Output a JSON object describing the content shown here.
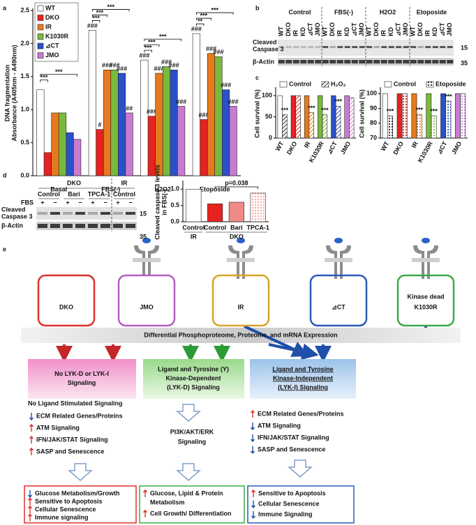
{
  "panel_labels": [
    "a",
    "b",
    "c",
    "d",
    "e"
  ],
  "chart_data": [
    {
      "type": "bar",
      "ylabel": [
        "DNA fragmentation",
        "Absorbance (A405nm - A490nm)"
      ],
      "categories": [
        "Basal",
        "FBS(-)",
        "H2O2",
        "Etoposide"
      ],
      "series": [
        {
          "name": "WT",
          "color": "#ffffff",
          "values": [
            1.3,
            2.2,
            1.75,
            2.15
          ]
        },
        {
          "name": "DKO",
          "color": "#e8231f",
          "values": [
            0.35,
            0.7,
            0.9,
            0.85
          ]
        },
        {
          "name": "IR",
          "color": "#e57a1e",
          "values": [
            0.95,
            1.6,
            1.55,
            1.85
          ]
        },
        {
          "name": "K1030R",
          "color": "#79b93b",
          "values": [
            0.95,
            1.6,
            1.65,
            1.8
          ]
        },
        {
          "name": "⊿CT",
          "color": "#2b50c8",
          "values": [
            0.65,
            1.55,
            1.6,
            1.3
          ]
        },
        {
          "name": "JMO",
          "color": "#c77bd1",
          "values": [
            0.55,
            0.95,
            1.05,
            1.05
          ]
        }
      ],
      "bar_labels": [
        [
          null,
          "###",
          "###",
          "###"
        ],
        [
          null,
          "#",
          "###",
          "###"
        ],
        [
          null,
          "###",
          "###",
          "###"
        ],
        [
          null,
          "###",
          "###",
          "###"
        ],
        [
          null,
          "###",
          "###",
          "###"
        ],
        [
          null,
          "##",
          "###",
          "###"
        ]
      ],
      "bracket_labels": [
        [
          "***",
          "***"
        ],
        [
          "***",
          "***",
          "***"
        ],
        [
          "***",
          "***",
          "***"
        ],
        [
          "**",
          "***",
          "***"
        ]
      ],
      "ylim": [
        0,
        2.5
      ],
      "yticks": [
        {
          "value": 0,
          "label": "0.0"
        },
        0.5,
        {
          "value": 1,
          "label": "1.0"
        },
        1.5,
        {
          "value": 2,
          "label": "2.0"
        },
        2.5
      ],
      "legend": "upper left"
    },
    {
      "type": "bar",
      "ylabel": [
        "Cell survival (%)"
      ],
      "categories": [
        "WT",
        "DKO",
        "IR",
        "K1030R",
        "⊿CT",
        "JMO"
      ],
      "category_colors": [
        "#ffffff",
        "#e8231f",
        "#e57a1e",
        "#79b93b",
        "#2b50c8",
        "#c77bd1"
      ],
      "series": [
        {
          "name": "Control",
          "pattern": "solid",
          "values": [
            100,
            100,
            100,
            100,
            100,
            100
          ]
        },
        {
          "name": "H₂O₂",
          "pattern": "hatch",
          "values": [
            55,
            100,
            60,
            55,
            75,
            95
          ]
        }
      ],
      "bar_labels": [
        [
          null,
          null,
          null,
          null,
          null,
          null
        ],
        [
          "***",
          null,
          "***",
          "***",
          "***",
          null
        ]
      ],
      "ylim": [
        0,
        115
      ],
      "yticks": [
        0,
        50,
        100
      ],
      "legend": "top"
    },
    {
      "type": "bar",
      "ylabel": [
        "Cell survival (%)"
      ],
      "categories": [
        "WT",
        "DKO",
        "IR",
        "K1030R",
        "⊿CT",
        "JMO"
      ],
      "category_colors": [
        "#ffffff",
        "#e8231f",
        "#e57a1e",
        "#79b93b",
        "#2b50c8",
        "#c77bd1"
      ],
      "series": [
        {
          "name": "Control",
          "pattern": "solid",
          "values": [
            100,
            100,
            100,
            100,
            100,
            100
          ]
        },
        {
          "name": "Etoposide",
          "pattern": "dots",
          "values": [
            85,
            100,
            86,
            85,
            95,
            100
          ]
        }
      ],
      "bar_labels": [
        [
          null,
          null,
          null,
          null,
          null,
          null
        ],
        [
          "***",
          null,
          "***",
          "***",
          "***",
          null
        ]
      ],
      "ylim": [
        70,
        103
      ],
      "yticks": [
        70,
        80,
        90,
        100
      ],
      "legend": "top"
    },
    {
      "type": "bar",
      "ylabel": [
        "Cleaved caspase 3 levels",
        "in FBS(-)"
      ],
      "categories": [
        "Control",
        "Control",
        "Bari",
        "TPCA-1"
      ],
      "groups": [
        {
          "label": "IR",
          "span": 1
        },
        {
          "label": "DKO",
          "span": 3
        }
      ],
      "category_colors": [
        "#ffffff",
        "#e8231f",
        "#f08a86",
        "#f4a0a0"
      ],
      "patterns": [
        "solid",
        "solid",
        "solid",
        "dots"
      ],
      "values": [
        1.0,
        0.55,
        0.6,
        0.88
      ],
      "annotation": "p=0.038",
      "ylim": [
        0,
        1.2
      ],
      "yticks": [
        {
          "value": 0,
          "label": "0.0"
        },
        0.5,
        {
          "value": 1,
          "label": "1.0"
        }
      ]
    }
  ],
  "blot_b": {
    "groups": [
      "Control",
      "FBS(-)",
      "H2O2",
      "Etoposide"
    ],
    "lanes": [
      "WT",
      "DKO",
      "IR",
      "KD",
      "⊿CT",
      "JMO"
    ],
    "rows": [
      [
        "Cleaved",
        "Caspase 3"
      ],
      [
        "β-Actin"
      ]
    ],
    "markers": [
      "15",
      "35"
    ]
  },
  "blot_d": {
    "groups": [
      "DKO",
      "IR"
    ],
    "conditions": [
      "Control",
      "Bari",
      "TPCA-1",
      "Control"
    ],
    "fbs_label": "FBS",
    "fbs": [
      "+",
      "−",
      "+",
      "−",
      "+",
      "−",
      "+",
      "−"
    ],
    "rows": [
      [
        "Cleaved",
        "Caspase 3"
      ],
      [
        "β-Actin"
      ]
    ],
    "markers": [
      "15",
      "35"
    ]
  },
  "diagram": {
    "receptors": [
      {
        "label": "DKO",
        "color": "#e0312b"
      },
      {
        "label": "JMO",
        "color": "#b55cc2"
      },
      {
        "label": "IR",
        "color": "#d7a32a"
      },
      {
        "label": "⊿CT",
        "color": "#2a5ab8"
      },
      {
        "label": "K1030R",
        "sublabel": "Kinase dead",
        "color": "#3aaa48"
      }
    ],
    "banner": "Differential Phosphoproteome, Proteome, and mRNA Expression",
    "classes": [
      [
        "No LYK-D or LYK-I",
        "Signaling"
      ],
      [
        "Ligand and Tyrosine (Y)",
        "Kinase-Dependent",
        "(LYK-D) Signaling"
      ],
      [
        "Ligand and Tyrosine",
        "Kinase-Independent",
        "(LYK-I) Signaling"
      ]
    ],
    "left_title": "No Ligand Stimulated Signaling",
    "left_items": [
      {
        "text": "ECM Related Genes/Proteins",
        "direction": "down"
      },
      {
        "text": "ATM Signaling",
        "direction": "up"
      },
      {
        "text": "IFN/JAK/STAT Signaling",
        "direction": "up"
      },
      {
        "text": "SASP and Senescence",
        "direction": "up"
      }
    ],
    "middle_text": [
      "PI3K/AKT/ERK",
      "Signaling"
    ],
    "right_items": [
      {
        "text": "ECM Related Genes/Proteins",
        "direction": "up"
      },
      {
        "text": "ATM Signaling",
        "direction": "down"
      },
      {
        "text": "IFN/JAK/STAT Signaling",
        "direction": "down"
      },
      {
        "text": "SASP and Senescence",
        "direction": "down"
      }
    ],
    "outcomes": [
      [
        {
          "text": [
            "Glucose Metabolism/Growth"
          ],
          "direction": "down"
        },
        {
          "text": [
            "Sensitive to Apoptosis"
          ],
          "direction": "up"
        },
        {
          "text": [
            "Cellular Senescence"
          ],
          "direction": "up"
        },
        {
          "text": [
            "Immune signaling"
          ],
          "direction": "up"
        }
      ],
      [
        {
          "text": [
            "Glucose, Lipid & Protein",
            "Metabolism"
          ],
          "direction": "up"
        },
        {
          "text": [
            "Cell Growth/ Differentiation"
          ],
          "direction": "up"
        }
      ],
      [
        {
          "text": [
            "Sensitive to Apoptosis"
          ],
          "direction": "up"
        },
        {
          "text": [
            "Cellular Senescence"
          ],
          "direction": "down"
        },
        {
          "text": [
            "Immune Signaling"
          ],
          "direction": "down"
        }
      ]
    ]
  }
}
